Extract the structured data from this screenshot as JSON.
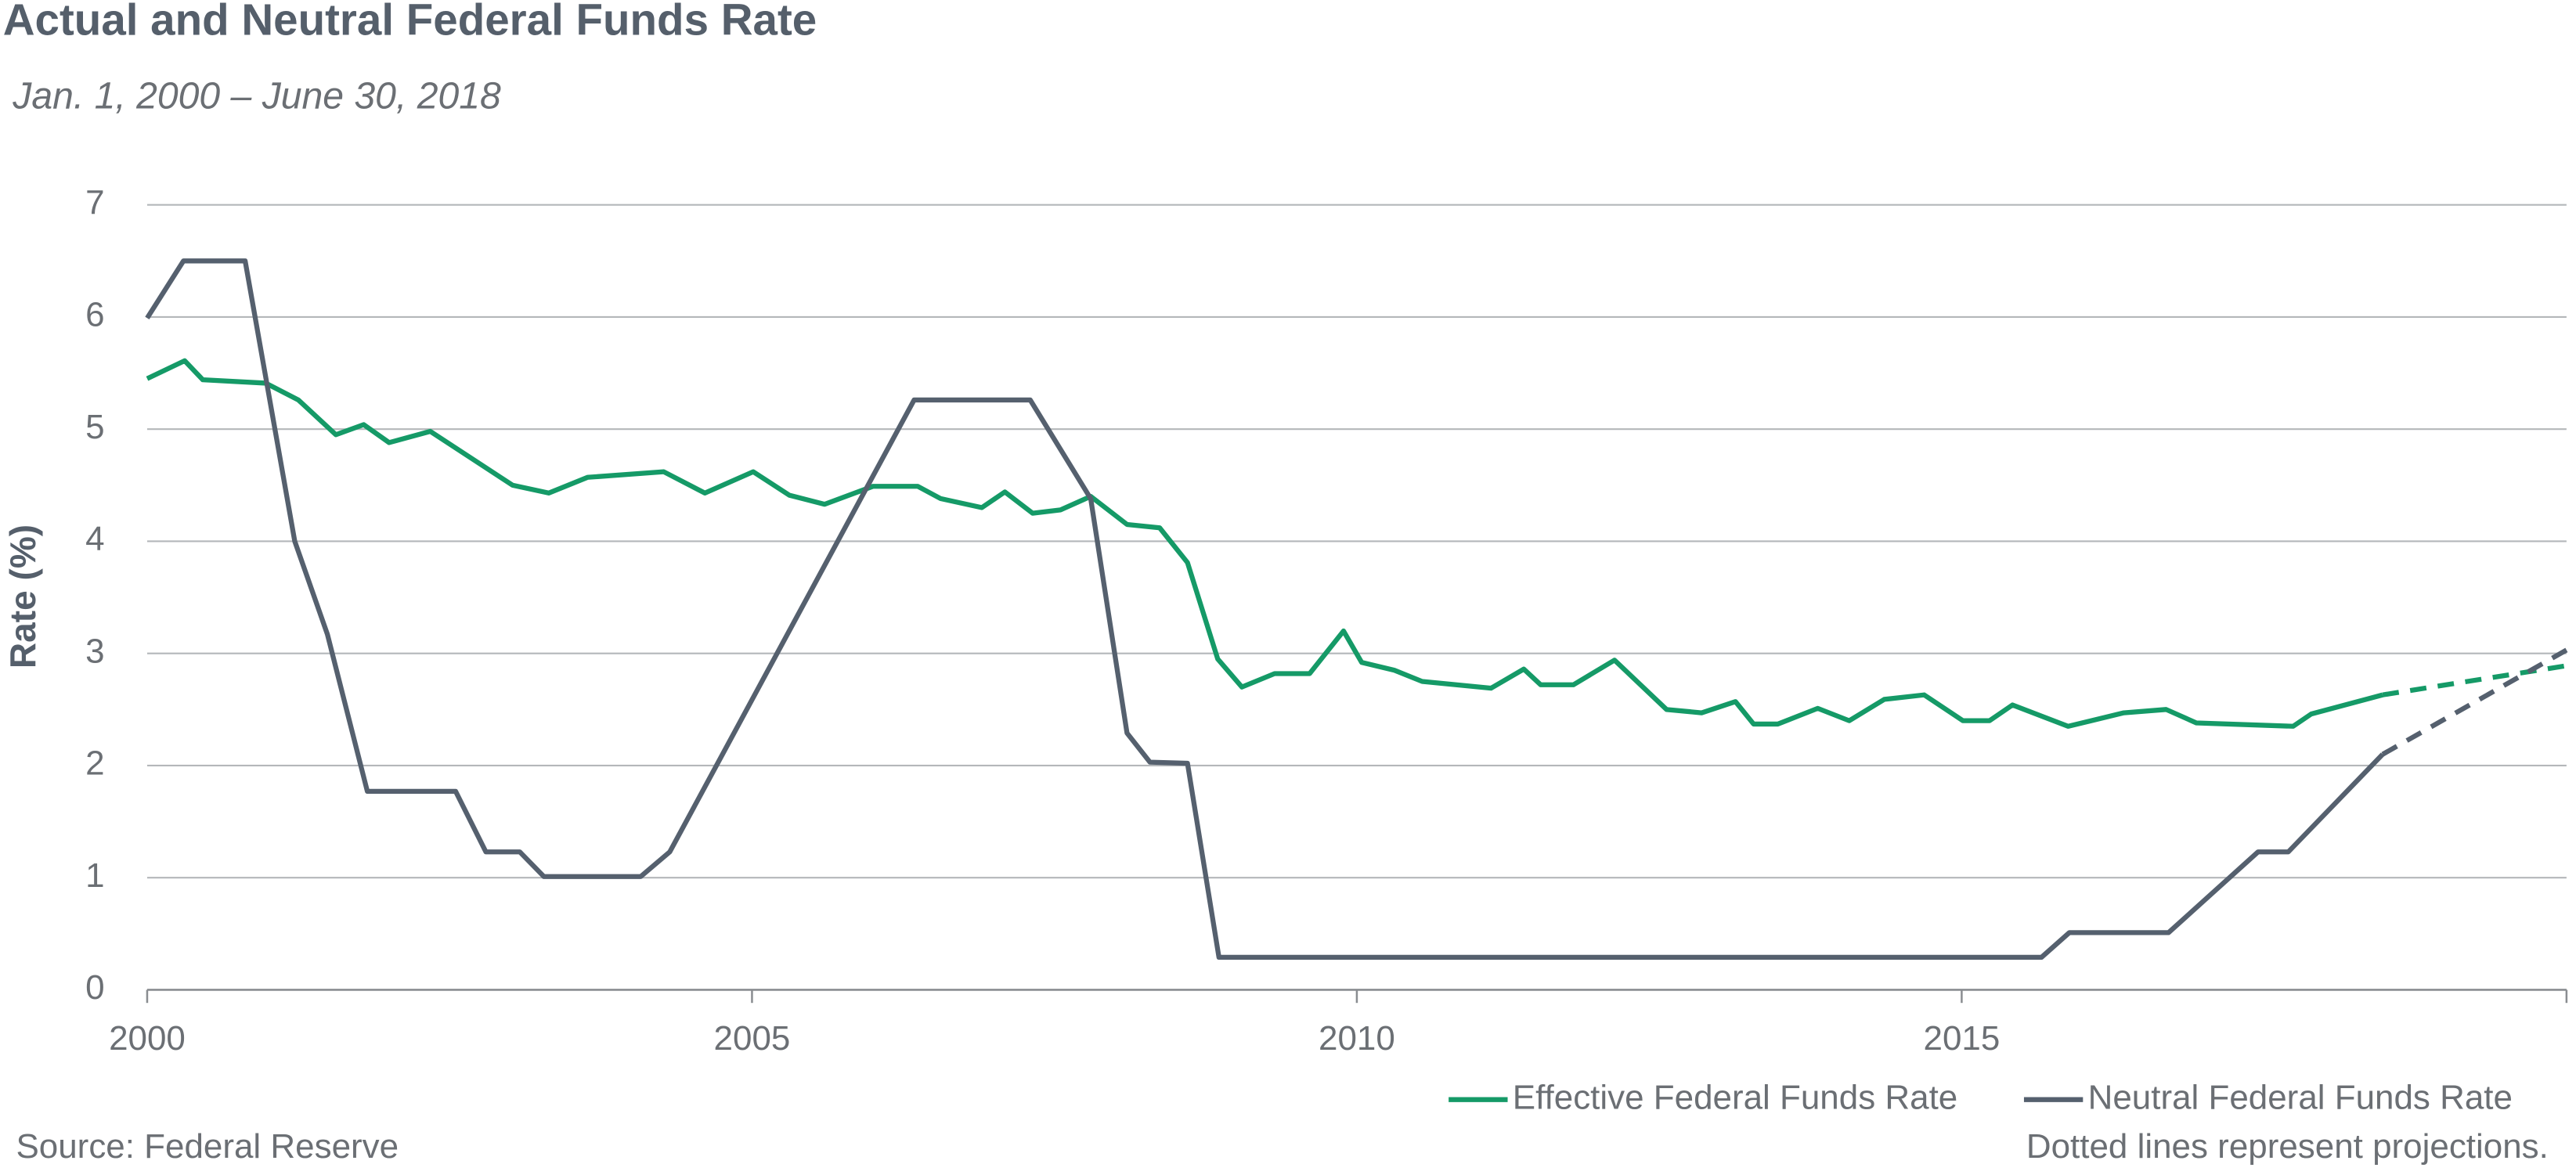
{
  "chart_data": {
    "type": "line",
    "title": "Actual and Neutral Federal Funds Rate",
    "subtitle": "Jan. 1, 2000  – June 30, 2018",
    "y_label": "Rate (%)",
    "source": "Source:  Federal Reserve",
    "note": "Dotted lines represent projections.",
    "xlim": [
      2000,
      2020
    ],
    "xticks": [
      2000,
      2005,
      2010,
      2015
    ],
    "ylim": [
      0,
      7
    ],
    "yticks": [
      0,
      1,
      2,
      3,
      4,
      5,
      6,
      7
    ],
    "grid": true,
    "legend": "bottom-right",
    "series": [
      {
        "name": "Effective Federal Funds Rate",
        "color": "#159a67",
        "x": [
          2000.0,
          2000.31,
          2000.46,
          2000.98,
          2001.25,
          2001.56,
          2001.79,
          2002.0,
          2002.34,
          2003.02,
          2003.32,
          2003.64,
          2004.27,
          2004.61,
          2005.01,
          2005.31,
          2005.6,
          2006.0,
          2006.37,
          2006.56,
          2006.9,
          2007.09,
          2007.32,
          2007.55,
          2007.8,
          2008.1,
          2008.37,
          2008.6,
          2008.85,
          2009.05,
          2009.32,
          2009.61,
          2009.89,
          2010.04,
          2010.31,
          2010.54,
          2011.11,
          2011.38,
          2011.52,
          2011.79,
          2012.13,
          2012.56,
          2012.85,
          2013.13,
          2013.28,
          2013.48,
          2013.81,
          2014.07,
          2014.36,
          2014.69,
          2015.01,
          2015.23,
          2015.42,
          2015.88,
          2016.34,
          2016.69,
          2016.94,
          2017.74,
          2017.89,
          2018.48
        ],
        "values": [
          5.45,
          5.61,
          5.44,
          5.41,
          5.26,
          4.95,
          5.04,
          4.88,
          4.98,
          4.5,
          4.43,
          4.57,
          4.62,
          4.43,
          4.62,
          4.41,
          4.33,
          4.49,
          4.49,
          4.38,
          4.3,
          4.44,
          4.25,
          4.28,
          4.4,
          4.15,
          4.12,
          3.81,
          2.95,
          2.7,
          2.82,
          2.82,
          3.2,
          2.92,
          2.85,
          2.75,
          2.69,
          2.86,
          2.72,
          2.72,
          2.94,
          2.5,
          2.47,
          2.57,
          2.37,
          2.37,
          2.51,
          2.4,
          2.59,
          2.63,
          2.4,
          2.4,
          2.54,
          2.35,
          2.47,
          2.5,
          2.38,
          2.35,
          2.46,
          2.63
        ],
        "projection_x": [
          2018.48,
          2020
        ],
        "projection_values": [
          2.63,
          2.89
        ]
      },
      {
        "name": "Neutral Federal Funds Rate",
        "color": "#55606e",
        "x": [
          2000.0,
          2000.3,
          2000.81,
          2001.22,
          2001.49,
          2001.82,
          2002.55,
          2002.8,
          2003.08,
          2003.28,
          2004.08,
          2004.32,
          2006.34,
          2007.3,
          2007.8,
          2008.1,
          2008.29,
          2008.6,
          2008.86,
          2015.66,
          2015.89,
          2016.71,
          2017.45,
          2017.7,
          2018.48
        ],
        "values": [
          5.99,
          6.5,
          6.5,
          4.0,
          3.17,
          1.77,
          1.77,
          1.23,
          1.23,
          1.01,
          1.01,
          1.23,
          5.26,
          5.26,
          4.38,
          2.29,
          2.03,
          2.02,
          0.29,
          0.29,
          0.51,
          0.51,
          1.23,
          1.23,
          2.1
        ],
        "projection_x": [
          2018.48,
          2020
        ],
        "projection_values": [
          2.1,
          3.03
        ]
      }
    ]
  }
}
